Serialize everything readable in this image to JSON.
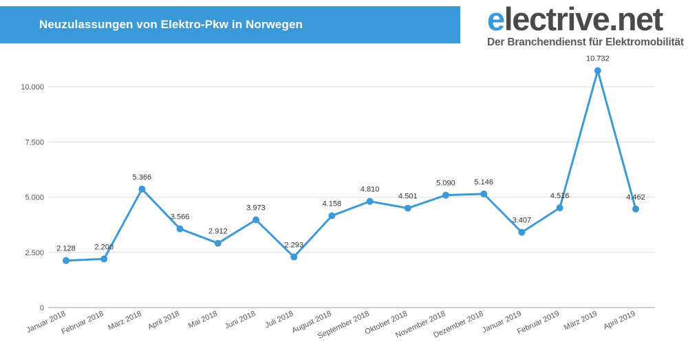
{
  "header": {
    "title": "Neuzulassungen von Elektro-Pkw in Norwegen"
  },
  "brand": {
    "name_accent": "e",
    "name_rest": "lectrive.net",
    "tagline": "Der Branchendienst für Elektromobilität"
  },
  "colors": {
    "accent": "#3a9ad9",
    "line": "#3a9ad9",
    "grid": "#dddddd"
  },
  "chart_data": {
    "type": "line",
    "title": "Neuzulassungen von Elektro-Pkw in Norwegen",
    "xlabel": "",
    "ylabel": "",
    "ylim": [
      0,
      11500
    ],
    "grid": true,
    "legend": "none",
    "y_ticks": [
      0,
      2500,
      5000,
      7500,
      10000
    ],
    "y_tick_labels": [
      "0",
      "2.500",
      "5.000",
      "7.500",
      "10.000"
    ],
    "categories": [
      "Januar 2018",
      "Februar 2018",
      "März 2018",
      "April 2018",
      "Mai 2018",
      "Juni 2018",
      "Juli 2018",
      "August 2018",
      "September 2018",
      "Oktober 2018",
      "November 2018",
      "Dezember 2018",
      "Januar 2019",
      "Februar 2019",
      "März 2019",
      "April 2019"
    ],
    "series": [
      {
        "values": [
          2128,
          2200,
          5366,
          3566,
          2912,
          3973,
          2293,
          4158,
          4810,
          4501,
          5090,
          5146,
          3407,
          4516,
          10732,
          4462
        ],
        "data_labels": [
          "2.128",
          "2.200",
          "5.366",
          "3.566",
          "2.912",
          "3.973",
          "2.293",
          "4.158",
          "4.810",
          "4.501",
          "5.090",
          "5.146",
          "3.407",
          "4.516",
          "10.732",
          "4.462"
        ]
      }
    ]
  }
}
